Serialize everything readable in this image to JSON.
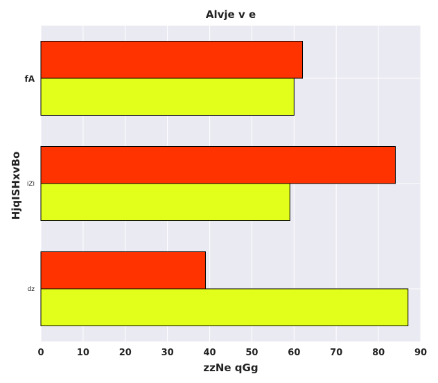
{
  "chart_data": {
    "type": "bar",
    "orientation": "horizontal",
    "title": "Alvje v  e",
    "xlabel": "zzNe  qGg",
    "ylabel": "HjqISHxvBo",
    "categories": [
      "fA",
      "iZi",
      "dz"
    ],
    "series": [
      {
        "values": [
          62,
          84,
          39
        ]
      },
      {
        "values": [
          60,
          59,
          87
        ]
      }
    ],
    "xlim": [
      0,
      90
    ],
    "xticks": [
      "0",
      "10",
      "20",
      "30",
      "40",
      "50",
      "60",
      "70",
      "80",
      "90"
    ],
    "grid": true,
    "legend": "none",
    "colors": {
      "background": "#eaeaf2",
      "grid": "#ffffff",
      "series": [
        "#ff3300",
        "#e2ff1b"
      ],
      "edge": "#000000"
    }
  }
}
